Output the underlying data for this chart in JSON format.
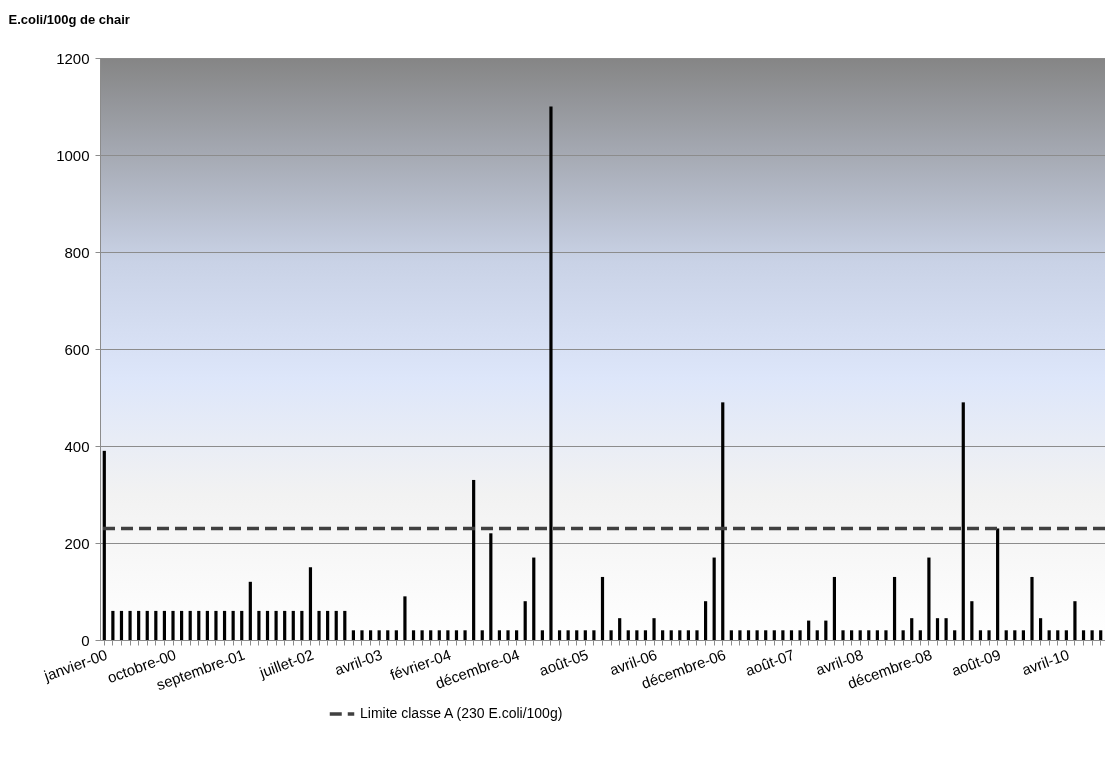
{
  "chart_data": {
    "type": "bar",
    "ylabel": "E.coli/100g de chair",
    "categories": [
      "janvier-00",
      null,
      null,
      null,
      null,
      null,
      null,
      null,
      "octobre-00",
      null,
      null,
      null,
      null,
      null,
      null,
      null,
      "septembre-01",
      null,
      null,
      null,
      null,
      null,
      null,
      null,
      "juillet-02",
      null,
      null,
      null,
      null,
      null,
      null,
      null,
      "avril-03",
      null,
      null,
      null,
      null,
      null,
      null,
      null,
      "février-04",
      null,
      null,
      null,
      null,
      null,
      null,
      null,
      "décembre-04",
      null,
      null,
      null,
      null,
      null,
      null,
      null,
      "août-05",
      null,
      null,
      null,
      null,
      null,
      null,
      null,
      "avril-06",
      null,
      null,
      null,
      null,
      null,
      null,
      null,
      "décembre-06",
      null,
      null,
      null,
      null,
      null,
      null,
      null,
      "août-07",
      null,
      null,
      null,
      null,
      null,
      null,
      null,
      "avril-08",
      null,
      null,
      null,
      null,
      null,
      null,
      null,
      "décembre-08",
      null,
      null,
      null,
      null,
      null,
      null,
      null,
      "août-09",
      null,
      null,
      null,
      null,
      null,
      null,
      null,
      "avril-10",
      null,
      null,
      null,
      null
    ],
    "values": [
      390,
      60,
      60,
      60,
      60,
      60,
      60,
      60,
      60,
      60,
      60,
      60,
      60,
      60,
      60,
      60,
      60,
      120,
      60,
      60,
      60,
      60,
      60,
      60,
      150,
      60,
      60,
      60,
      60,
      20,
      20,
      20,
      20,
      20,
      20,
      90,
      20,
      20,
      20,
      20,
      20,
      20,
      20,
      330,
      20,
      220,
      20,
      20,
      20,
      80,
      170,
      20,
      1100,
      20,
      20,
      20,
      20,
      20,
      130,
      20,
      45,
      20,
      20,
      20,
      45,
      20,
      20,
      20,
      20,
      20,
      80,
      170,
      490,
      20,
      20,
      20,
      20,
      20,
      20,
      20,
      20,
      20,
      40,
      20,
      40,
      130,
      20,
      20,
      20,
      20,
      20,
      20,
      130,
      20,
      45,
      20,
      170,
      45,
      45,
      20,
      490,
      80,
      20,
      20,
      230,
      20,
      20,
      20,
      130,
      45,
      20,
      20,
      20,
      80,
      20,
      20,
      20
    ],
    "color": "#000000",
    "ylim": [
      0,
      1200
    ],
    "yticks": [
      0,
      200,
      400,
      600,
      800,
      1000,
      1200
    ],
    "grid": "y",
    "ref_lines": [
      {
        "axis": "y",
        "value": 230,
        "label": "Limite classe A (230 E.coli/100g)",
        "color": "#404040",
        "line_style": "dashed"
      }
    ],
    "legend": "bottom"
  }
}
